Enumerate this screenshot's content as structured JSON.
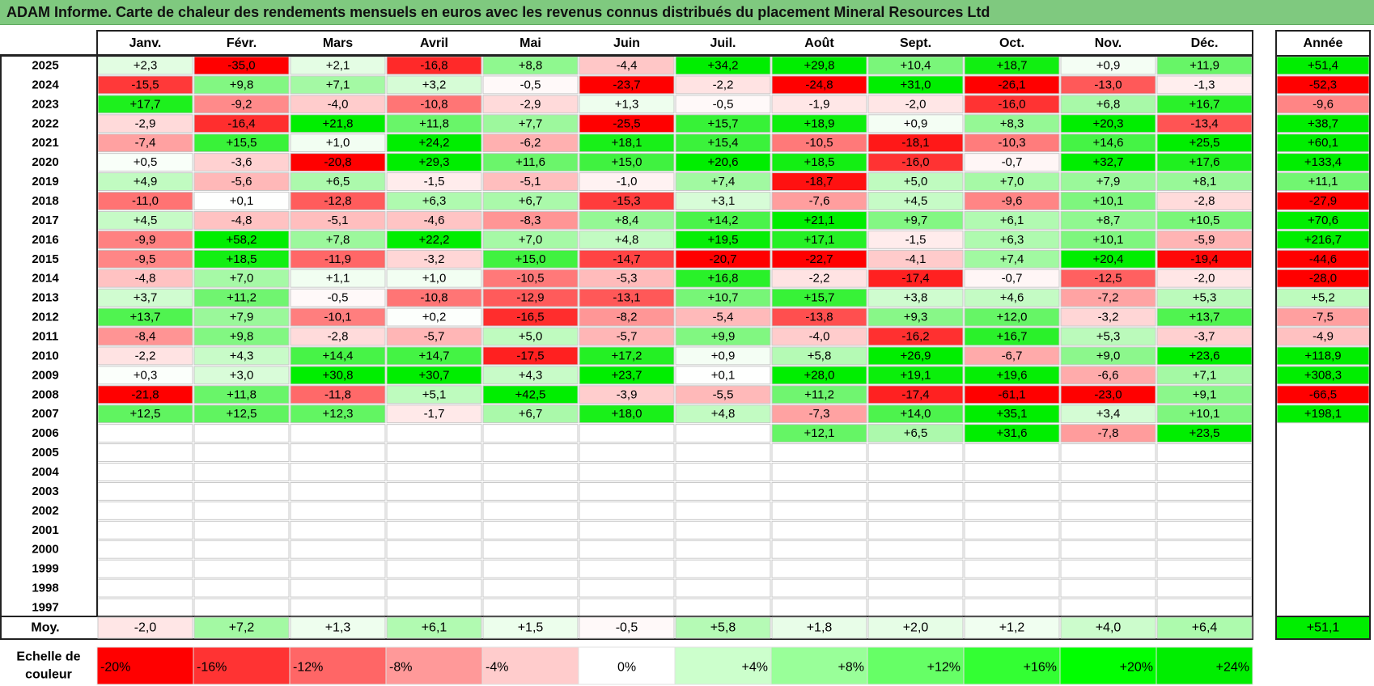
{
  "title": "ADAM Informe. Carte de chaleur des rendements mensuels en euros avec les revenus connus distribués du placement Mineral Resources Ltd",
  "chart_data": {
    "type": "heatmap",
    "columns": [
      "Janv.",
      "Févr.",
      "Mars",
      "Avril",
      "Mai",
      "Juin",
      "Juil.",
      "Août",
      "Sept.",
      "Oct.",
      "Nov.",
      "Déc."
    ],
    "year_header": "Année",
    "rows": [
      {
        "year": "2025",
        "values": [
          "+2,3",
          "-35,0",
          "+2,1",
          "-16,8",
          "+8,8",
          "-4,4",
          "+34,2",
          "+29,8",
          "+10,4",
          "+18,7",
          "+0,9",
          "+11,9"
        ],
        "annual": "+51,4"
      },
      {
        "year": "2024",
        "values": [
          "-15,5",
          "+9,8",
          "+7,1",
          "+3,2",
          "-0,5",
          "-23,7",
          "-2,2",
          "-24,8",
          "+31,0",
          "-26,1",
          "-13,0",
          "-1,3"
        ],
        "annual": "-52,3"
      },
      {
        "year": "2023",
        "values": [
          "+17,7",
          "-9,2",
          "-4,0",
          "-10,8",
          "-2,9",
          "+1,3",
          "-0,5",
          "-1,9",
          "-2,0",
          "-16,0",
          "+6,8",
          "+16,7"
        ],
        "annual": "-9,6"
      },
      {
        "year": "2022",
        "values": [
          "-2,9",
          "-16,4",
          "+21,8",
          "+11,8",
          "+7,7",
          "-25,5",
          "+15,7",
          "+18,9",
          "+0,9",
          "+8,3",
          "+20,3",
          "-13,4"
        ],
        "annual": "+38,7"
      },
      {
        "year": "2021",
        "values": [
          "-7,4",
          "+15,5",
          "+1,0",
          "+24,2",
          "-6,2",
          "+18,1",
          "+15,4",
          "-10,5",
          "-18,1",
          "-10,3",
          "+14,6",
          "+25,5"
        ],
        "annual": "+60,1"
      },
      {
        "year": "2020",
        "values": [
          "+0,5",
          "-3,6",
          "-20,8",
          "+29,3",
          "+11,6",
          "+15,0",
          "+20,6",
          "+18,5",
          "-16,0",
          "-0,7",
          "+32,7",
          "+17,6"
        ],
        "annual": "+133,4"
      },
      {
        "year": "2019",
        "values": [
          "+4,9",
          "-5,6",
          "+6,5",
          "-1,5",
          "-5,1",
          "-1,0",
          "+7,4",
          "-18,7",
          "+5,0",
          "+7,0",
          "+7,9",
          "+8,1"
        ],
        "annual": "+11,1"
      },
      {
        "year": "2018",
        "values": [
          "-11,0",
          "+0,1",
          "-12,8",
          "+6,3",
          "+6,7",
          "-15,3",
          "+3,1",
          "-7,6",
          "+4,5",
          "-9,6",
          "+10,1",
          "-2,8"
        ],
        "annual": "-27,9"
      },
      {
        "year": "2017",
        "values": [
          "+4,5",
          "-4,8",
          "-5,1",
          "-4,6",
          "-8,3",
          "+8,4",
          "+14,2",
          "+21,1",
          "+9,7",
          "+6,1",
          "+8,7",
          "+10,5"
        ],
        "annual": "+70,6"
      },
      {
        "year": "2016",
        "values": [
          "-9,9",
          "+58,2",
          "+7,8",
          "+22,2",
          "+7,0",
          "+4,8",
          "+19,5",
          "+17,1",
          "-1,5",
          "+6,3",
          "+10,1",
          "-5,9"
        ],
        "annual": "+216,7"
      },
      {
        "year": "2015",
        "values": [
          "-9,5",
          "+18,5",
          "-11,9",
          "-3,2",
          "+15,0",
          "-14,7",
          "-20,7",
          "-22,7",
          "-4,1",
          "+7,4",
          "+20,4",
          "-19,4"
        ],
        "annual": "-44,6"
      },
      {
        "year": "2014",
        "values": [
          "-4,8",
          "+7,0",
          "+1,1",
          "+1,0",
          "-10,5",
          "-5,3",
          "+16,8",
          "-2,2",
          "-17,4",
          "-0,7",
          "-12,5",
          "-2,0"
        ],
        "annual": "-28,0"
      },
      {
        "year": "2013",
        "values": [
          "+3,7",
          "+11,2",
          "-0,5",
          "-10,8",
          "-12,9",
          "-13,1",
          "+10,7",
          "+15,7",
          "+3,8",
          "+4,6",
          "-7,2",
          "+5,3"
        ],
        "annual": "+5,2"
      },
      {
        "year": "2012",
        "values": [
          "+13,7",
          "+7,9",
          "-10,1",
          "+0,2",
          "-16,5",
          "-8,2",
          "-5,4",
          "-13,8",
          "+9,3",
          "+12,0",
          "-3,2",
          "+13,7"
        ],
        "annual": "-7,5"
      },
      {
        "year": "2011",
        "values": [
          "-8,4",
          "+9,8",
          "-2,8",
          "-5,7",
          "+5,0",
          "-5,7",
          "+9,9",
          "-4,0",
          "-16,2",
          "+16,7",
          "+5,3",
          "-3,7"
        ],
        "annual": "-4,9"
      },
      {
        "year": "2010",
        "values": [
          "-2,2",
          "+4,3",
          "+14,4",
          "+14,7",
          "-17,5",
          "+17,2",
          "+0,9",
          "+5,8",
          "+26,9",
          "-6,7",
          "+9,0",
          "+23,6"
        ],
        "annual": "+118,9"
      },
      {
        "year": "2009",
        "values": [
          "+0,3",
          "+3,0",
          "+30,8",
          "+30,7",
          "+4,3",
          "+23,7",
          "+0,1",
          "+28,0",
          "+19,1",
          "+19,6",
          "-6,6",
          "+7,1"
        ],
        "annual": "+308,3"
      },
      {
        "year": "2008",
        "values": [
          "-21,8",
          "+11,8",
          "-11,8",
          "+5,1",
          "+42,5",
          "-3,9",
          "-5,5",
          "+11,2",
          "-17,4",
          "-61,1",
          "-23,0",
          "+9,1"
        ],
        "annual": "-66,5"
      },
      {
        "year": "2007",
        "values": [
          "+12,5",
          "+12,5",
          "+12,3",
          "-1,7",
          "+6,7",
          "+18,0",
          "+4,8",
          "-7,3",
          "+14,0",
          "+35,1",
          "+3,4",
          "+10,1"
        ],
        "annual": "+198,1"
      },
      {
        "year": "2006",
        "values": [
          "",
          "",
          "",
          "",
          "",
          "",
          "",
          "+12,1",
          "+6,5",
          "+31,6",
          "-7,8",
          "+23,5"
        ],
        "annual": ""
      },
      {
        "year": "2005",
        "values": [
          "",
          "",
          "",
          "",
          "",
          "",
          "",
          "",
          "",
          "",
          "",
          ""
        ],
        "annual": ""
      },
      {
        "year": "2004",
        "values": [
          "",
          "",
          "",
          "",
          "",
          "",
          "",
          "",
          "",
          "",
          "",
          ""
        ],
        "annual": ""
      },
      {
        "year": "2003",
        "values": [
          "",
          "",
          "",
          "",
          "",
          "",
          "",
          "",
          "",
          "",
          "",
          ""
        ],
        "annual": ""
      },
      {
        "year": "2002",
        "values": [
          "",
          "",
          "",
          "",
          "",
          "",
          "",
          "",
          "",
          "",
          "",
          ""
        ],
        "annual": ""
      },
      {
        "year": "2001",
        "values": [
          "",
          "",
          "",
          "",
          "",
          "",
          "",
          "",
          "",
          "",
          "",
          ""
        ],
        "annual": ""
      },
      {
        "year": "2000",
        "values": [
          "",
          "",
          "",
          "",
          "",
          "",
          "",
          "",
          "",
          "",
          "",
          ""
        ],
        "annual": ""
      },
      {
        "year": "1999",
        "values": [
          "",
          "",
          "",
          "",
          "",
          "",
          "",
          "",
          "",
          "",
          "",
          ""
        ],
        "annual": ""
      },
      {
        "year": "1998",
        "values": [
          "",
          "",
          "",
          "",
          "",
          "",
          "",
          "",
          "",
          "",
          "",
          ""
        ],
        "annual": ""
      },
      {
        "year": "1997",
        "values": [
          "",
          "",
          "",
          "",
          "",
          "",
          "",
          "",
          "",
          "",
          "",
          ""
        ],
        "annual": ""
      }
    ],
    "average": {
      "label": "Moy.",
      "values": [
        "-2,0",
        "+7,2",
        "+1,3",
        "+6,1",
        "+1,5",
        "-0,5",
        "+5,8",
        "+1,8",
        "+2,0",
        "+1,2",
        "+4,0",
        "+6,4"
      ],
      "annual": "+51,1"
    },
    "color_scale": {
      "label": "Echelle de couleur",
      "stops": [
        "-20%",
        "-16%",
        "-12%",
        "-8%",
        "-4%",
        "0%",
        "+4%",
        "+8%",
        "+12%",
        "+16%",
        "+20%",
        "+24%"
      ],
      "stop_values": [
        -20,
        -16,
        -12,
        -8,
        -4,
        0,
        4,
        8,
        12,
        16,
        20,
        24
      ],
      "stop_colors": [
        "#ff0000",
        "#ff3333",
        "#ff6666",
        "#ff9999",
        "#ffcccc",
        "#ffffff",
        "#ccffcc",
        "#99ff99",
        "#66ff66",
        "#33ff33",
        "#00ff00",
        "#00ee00"
      ]
    }
  }
}
